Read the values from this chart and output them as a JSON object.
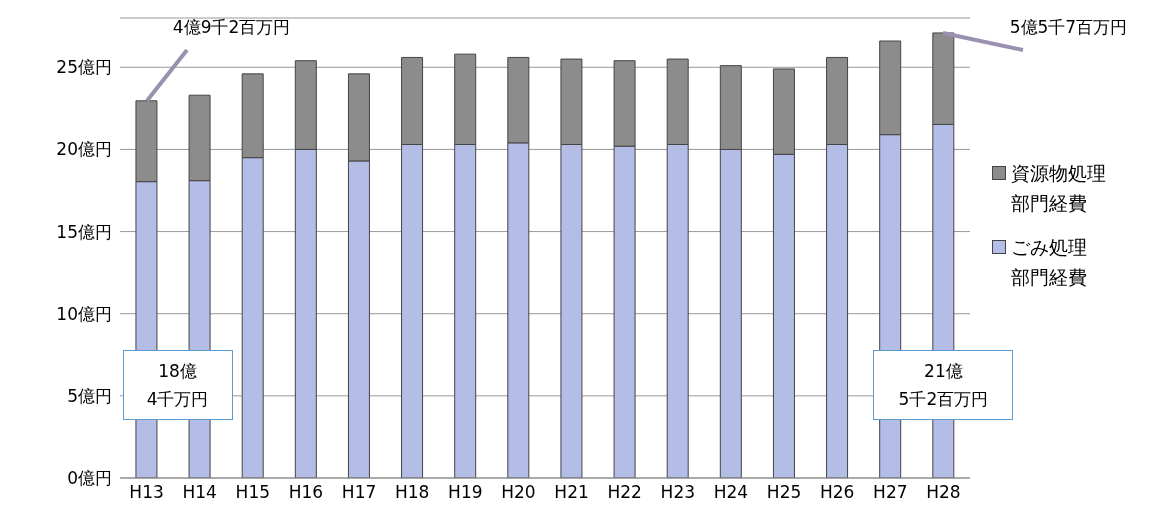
{
  "chart_data": {
    "type": "bar",
    "stacked": true,
    "categories": [
      "H13",
      "H14",
      "H15",
      "H16",
      "H17",
      "H18",
      "H19",
      "H20",
      "H21",
      "H22",
      "H23",
      "H24",
      "H25",
      "H26",
      "H27",
      "H28"
    ],
    "series": [
      {
        "name": "ごみ処理部門経費",
        "color": "#b4bde6",
        "values": [
          18.04,
          18.1,
          19.5,
          20.0,
          19.3,
          20.3,
          20.3,
          20.4,
          20.3,
          20.2,
          20.3,
          20.0,
          19.7,
          20.3,
          20.9,
          21.52
        ]
      },
      {
        "name": "資源物処理部門経費",
        "color": "#8c8c8c",
        "values": [
          4.92,
          5.2,
          5.1,
          5.4,
          5.3,
          5.3,
          5.5,
          5.2,
          5.2,
          5.2,
          5.2,
          5.1,
          5.2,
          5.3,
          5.7,
          5.57
        ]
      }
    ],
    "ylim": [
      0,
      28
    ],
    "yticks": [
      {
        "value": 0,
        "label": "0億円"
      },
      {
        "value": 5,
        "label": "5億円"
      },
      {
        "value": 10,
        "label": "10億円"
      },
      {
        "value": 15,
        "label": "15億円"
      },
      {
        "value": 20,
        "label": "20億円"
      },
      {
        "value": 25,
        "label": "25億円"
      }
    ],
    "grid": "y",
    "legend": "right",
    "annotations": [
      {
        "text": "4億9千2百万円",
        "x": "H13",
        "y": 22.96
      },
      "18億",
      "4千万円",
      {
        "text": "5億5千7百万円",
        "x": "H28",
        "y": 27.09
      },
      "21億",
      "5千2百万円"
    ]
  }
}
